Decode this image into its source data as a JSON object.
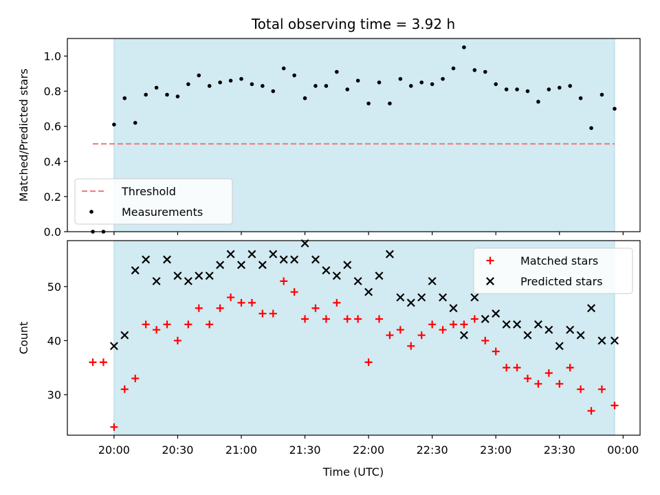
{
  "chart_data": {
    "title": "Total observing time = 3.92 h",
    "xlabel": "Time (UTC)",
    "x_tick_labels": [
      "20:00",
      "20:30",
      "21:00",
      "21:30",
      "22:00",
      "22:30",
      "23:00",
      "23:30",
      "00:00"
    ],
    "x_ticks_min": [
      0,
      30,
      60,
      90,
      120,
      150,
      180,
      210,
      240
    ],
    "xlim_min": [
      -22,
      248
    ],
    "shaded_interval_min": [
      0,
      236
    ],
    "colors": {
      "shade": "#add8e6",
      "threshold": "#f08080",
      "measurements": "#000000",
      "matched": "#ff0000",
      "predicted": "#000000"
    },
    "panels": [
      {
        "type": "scatter",
        "ylabel": "Matched/Predicted stars",
        "ylim": [
          0,
          1.1
        ],
        "y_ticks": [
          0.0,
          0.2,
          0.4,
          0.6,
          0.8,
          1.0
        ],
        "y_tick_labels": [
          "0.0",
          "0.2",
          "0.4",
          "0.6",
          "0.8",
          "1.0"
        ],
        "legend": {
          "placement": "lower-left",
          "entries": [
            "Threshold",
            "Measurements"
          ]
        },
        "threshold": {
          "name": "Threshold",
          "y": 0.5,
          "x_range_min": [
            -10,
            236
          ]
        },
        "series": [
          {
            "name": "Measurements",
            "marker": "dot",
            "x": [
              -10,
              -5,
              0,
              5,
              10,
              15,
              20,
              25,
              30,
              35,
              40,
              45,
              50,
              55,
              60,
              65,
              70,
              75,
              80,
              85,
              90,
              95,
              100,
              105,
              110,
              115,
              120,
              125,
              130,
              135,
              140,
              145,
              150,
              155,
              160,
              165,
              170,
              175,
              180,
              185,
              190,
              195,
              200,
              205,
              210,
              215,
              220,
              225,
              230,
              236
            ],
            "y": [
              0.0,
              0.0,
              0.61,
              0.76,
              0.62,
              0.78,
              0.82,
              0.78,
              0.77,
              0.84,
              0.89,
              0.83,
              0.85,
              0.86,
              0.87,
              0.84,
              0.83,
              0.8,
              0.93,
              0.89,
              0.76,
              0.83,
              0.83,
              0.91,
              0.81,
              0.86,
              0.73,
              0.85,
              0.73,
              0.87,
              0.83,
              0.85,
              0.84,
              0.87,
              0.93,
              1.05,
              0.92,
              0.91,
              0.84,
              0.81,
              0.81,
              0.8,
              0.74,
              0.81,
              0.82,
              0.83,
              0.76,
              0.59,
              0.78,
              0.7
            ]
          }
        ]
      },
      {
        "type": "scatter",
        "ylabel": "Count",
        "ylim": [
          22.5,
          58.5
        ],
        "y_ticks": [
          30,
          40,
          50
        ],
        "y_tick_labels": [
          "30",
          "40",
          "50"
        ],
        "legend": {
          "placement": "upper-right",
          "entries": [
            "Matched stars",
            "Predicted stars"
          ]
        },
        "series": [
          {
            "name": "Matched stars",
            "marker": "plus",
            "x": [
              -10,
              -5,
              0,
              5,
              10,
              15,
              20,
              25,
              30,
              35,
              40,
              45,
              50,
              55,
              60,
              65,
              70,
              75,
              80,
              85,
              90,
              95,
              100,
              105,
              110,
              115,
              120,
              125,
              130,
              135,
              140,
              145,
              150,
              155,
              160,
              165,
              170,
              175,
              180,
              185,
              190,
              195,
              200,
              205,
              210,
              215,
              220,
              225,
              230,
              236
            ],
            "y": [
              36,
              36,
              24,
              31,
              33,
              43,
              42,
              43,
              40,
              43,
              46,
              43,
              46,
              48,
              47,
              47,
              45,
              45,
              51,
              49,
              44,
              46,
              44,
              47,
              44,
              44,
              36,
              44,
              41,
              42,
              39,
              41,
              43,
              42,
              43,
              43,
              44,
              40,
              38,
              35,
              35,
              33,
              32,
              34,
              32,
              35,
              31,
              27,
              31,
              28
            ]
          },
          {
            "name": "Predicted stars",
            "marker": "x",
            "x": [
              0,
              5,
              10,
              15,
              20,
              25,
              30,
              35,
              40,
              45,
              50,
              55,
              60,
              65,
              70,
              75,
              80,
              85,
              90,
              95,
              100,
              105,
              110,
              115,
              120,
              125,
              130,
              135,
              140,
              145,
              150,
              155,
              160,
              165,
              170,
              175,
              180,
              185,
              190,
              195,
              200,
              205,
              210,
              215,
              220,
              225,
              230,
              236
            ],
            "y": [
              39,
              41,
              53,
              55,
              51,
              55,
              52,
              51,
              52,
              52,
              54,
              56,
              54,
              56,
              54,
              56,
              55,
              55,
              58,
              55,
              53,
              52,
              54,
              51,
              49,
              52,
              56,
              48,
              47,
              48,
              51,
              48,
              46,
              41,
              48,
              44,
              45,
              43,
              43,
              41,
              43,
              42,
              39,
              42,
              41,
              46,
              40,
              40
            ]
          }
        ]
      }
    ]
  }
}
